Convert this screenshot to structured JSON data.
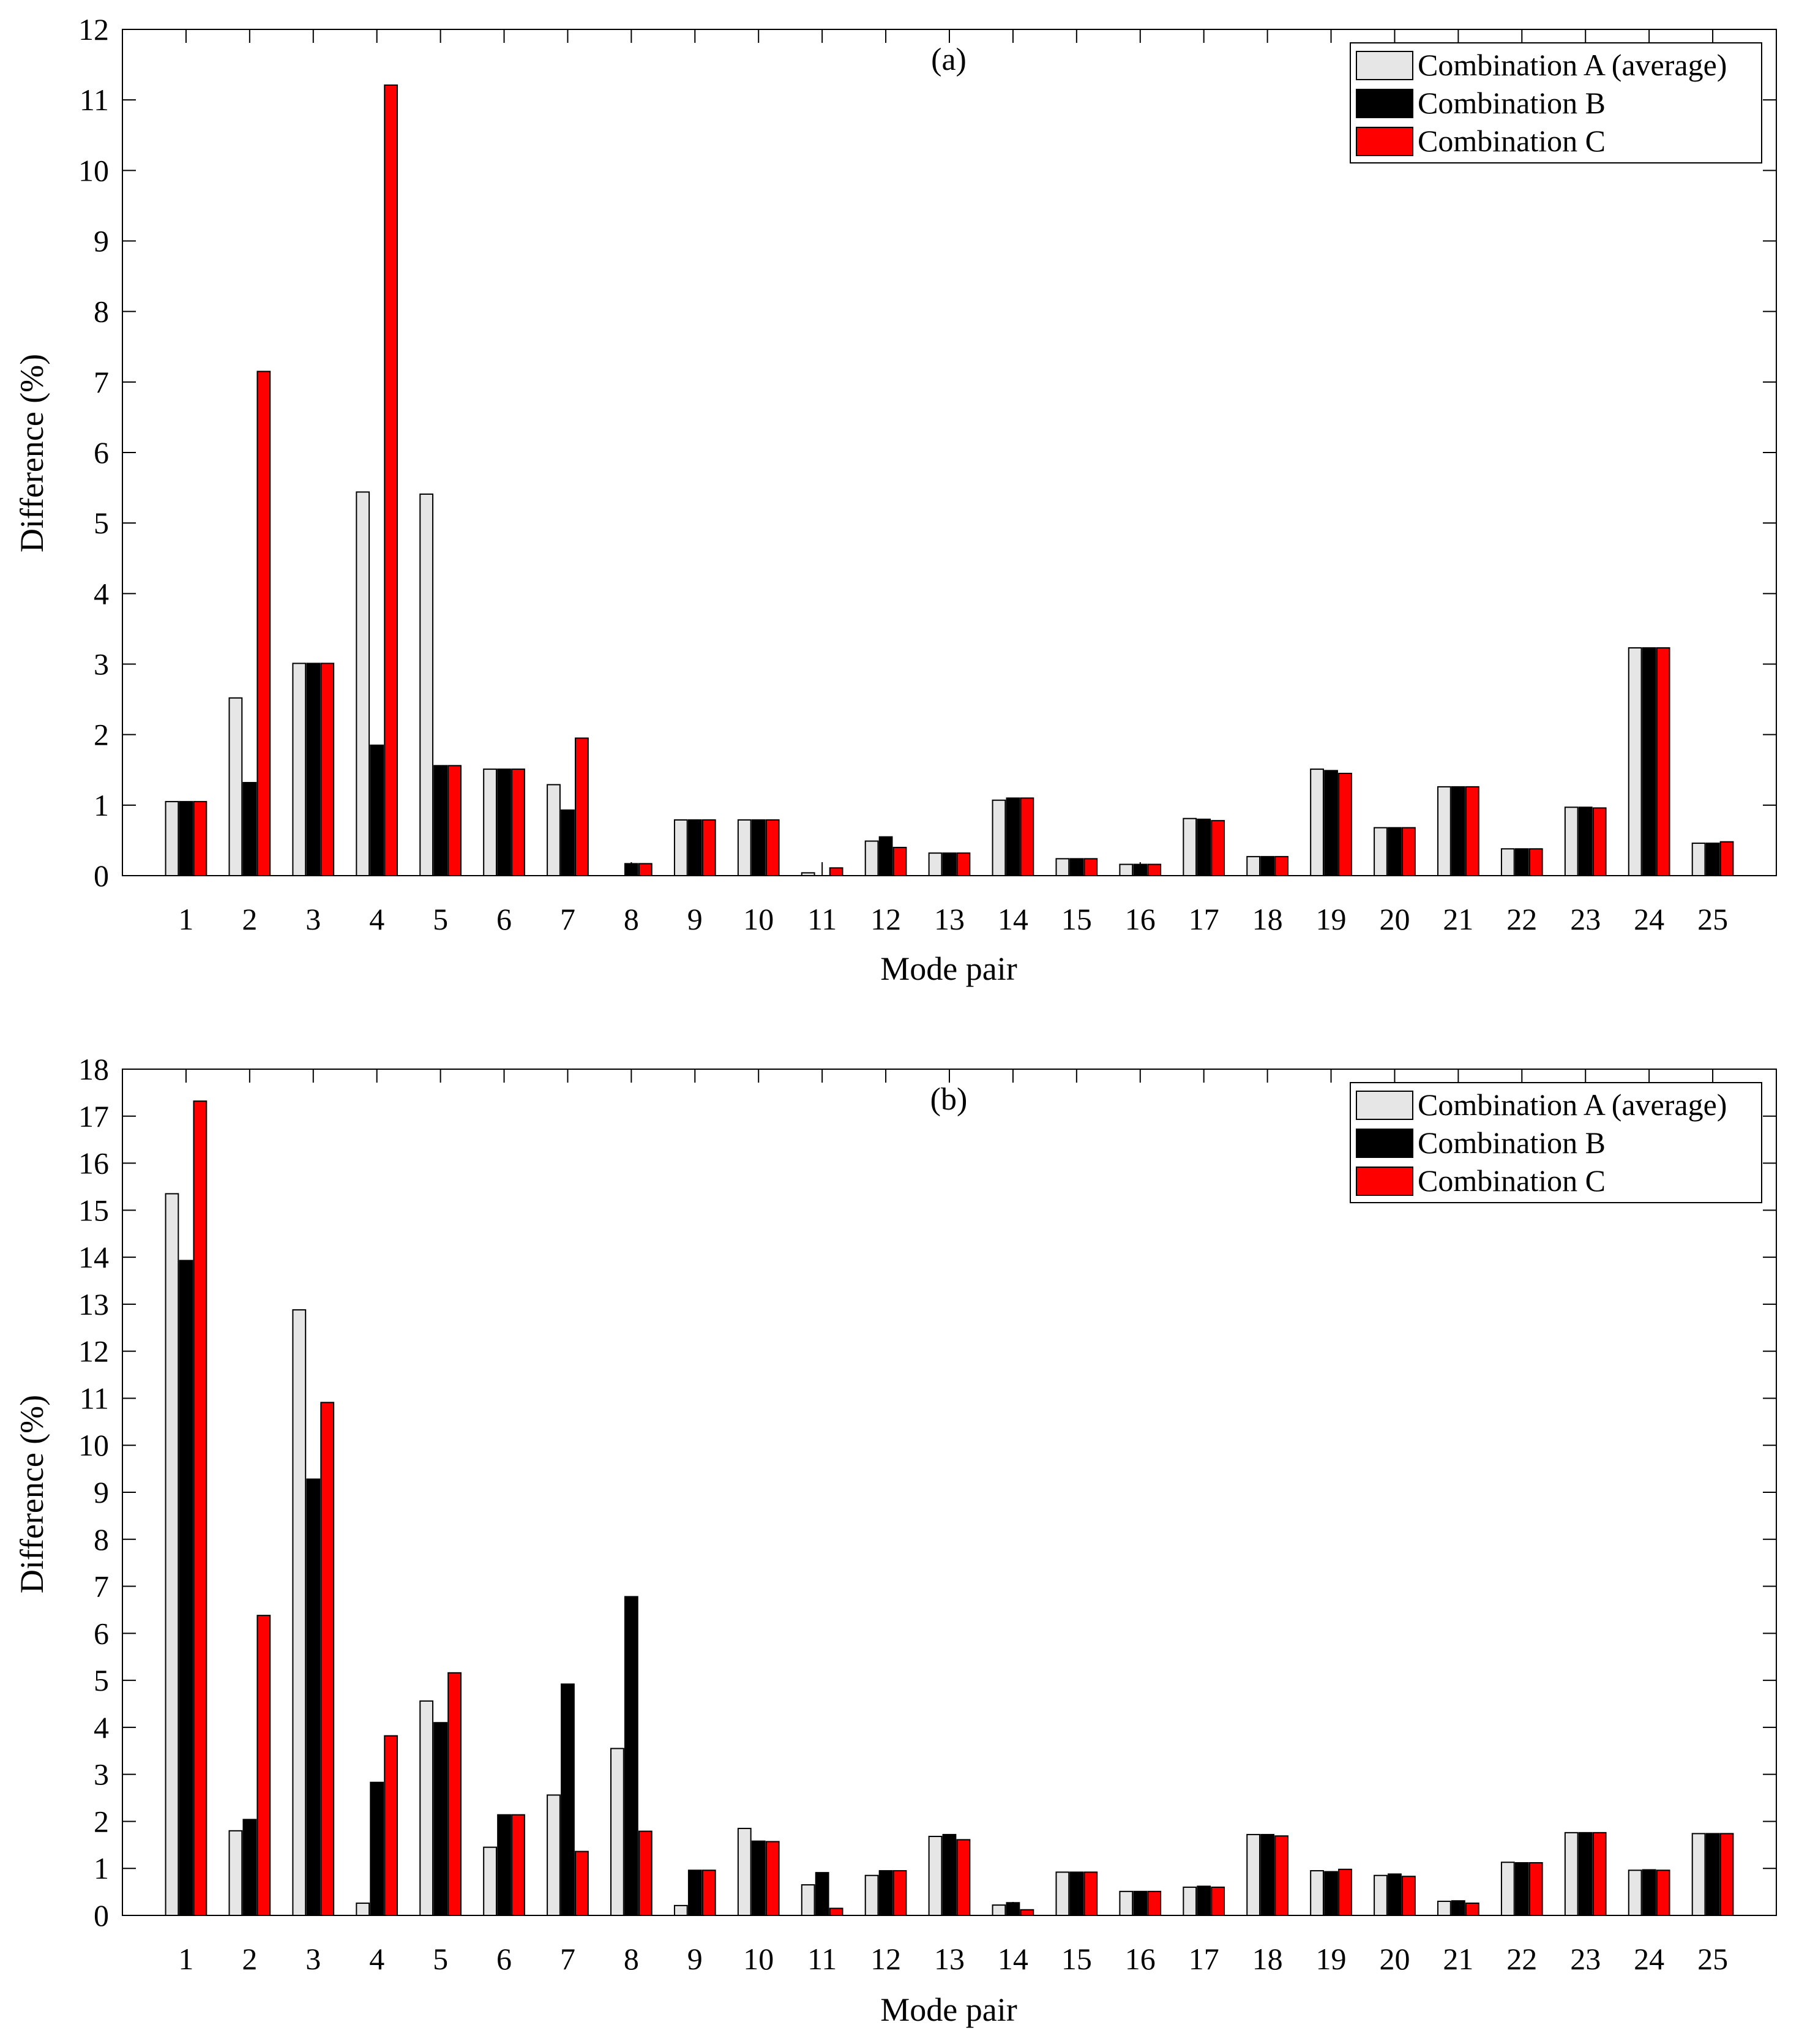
{
  "colors": {
    "combination_a": "#e6e6e6",
    "combination_b": "#000000",
    "combination_c": "#ff0000",
    "axis": "#000000",
    "background": "#ffffff"
  },
  "chart_data": [
    {
      "type": "bar",
      "title": "(a)",
      "xlabel": "Mode pair",
      "ylabel": "Difference (%)",
      "ylim": [
        0,
        12
      ],
      "yticks": [
        0,
        1,
        2,
        3,
        4,
        5,
        6,
        7,
        8,
        9,
        10,
        11,
        12
      ],
      "legend_position": "top-right",
      "categories": [
        "1",
        "2",
        "3",
        "4",
        "5",
        "6",
        "7",
        "8",
        "9",
        "10",
        "11",
        "12",
        "13",
        "14",
        "15",
        "16",
        "17",
        "18",
        "19",
        "20",
        "21",
        "22",
        "23",
        "24",
        "25"
      ],
      "series": [
        {
          "name": "Combination A (average)",
          "key": "combination_a",
          "values": [
            1.05,
            2.52,
            3.01,
            5.44,
            5.41,
            1.51,
            1.29,
            0.0,
            0.79,
            0.79,
            0.04,
            0.49,
            0.32,
            1.07,
            0.24,
            0.16,
            0.81,
            0.27,
            1.51,
            0.68,
            1.26,
            0.38,
            0.97,
            3.23,
            0.46
          ]
        },
        {
          "name": "Combination B",
          "key": "combination_b",
          "values": [
            1.05,
            1.32,
            3.01,
            1.85,
            1.56,
            1.51,
            0.93,
            0.17,
            0.79,
            0.79,
            0.0,
            0.55,
            0.32,
            1.1,
            0.24,
            0.16,
            0.8,
            0.27,
            1.49,
            0.68,
            1.26,
            0.38,
            0.97,
            3.23,
            0.46
          ]
        },
        {
          "name": "Combination C",
          "key": "combination_c",
          "values": [
            1.05,
            7.15,
            3.01,
            11.21,
            1.56,
            1.51,
            1.95,
            0.17,
            0.79,
            0.79,
            0.11,
            0.4,
            0.32,
            1.1,
            0.24,
            0.16,
            0.78,
            0.27,
            1.45,
            0.68,
            1.26,
            0.38,
            0.96,
            3.23,
            0.48
          ]
        }
      ]
    },
    {
      "type": "bar",
      "title": "(b)",
      "xlabel": "Mode pair",
      "ylabel": "Difference (%)",
      "ylim": [
        0,
        18
      ],
      "yticks": [
        0,
        1,
        2,
        3,
        4,
        5,
        6,
        7,
        8,
        9,
        10,
        11,
        12,
        13,
        14,
        15,
        16,
        17,
        18
      ],
      "legend_position": "top-right",
      "categories": [
        "1",
        "2",
        "3",
        "4",
        "5",
        "6",
        "7",
        "8",
        "9",
        "10",
        "11",
        "12",
        "13",
        "14",
        "15",
        "16",
        "17",
        "18",
        "19",
        "20",
        "21",
        "22",
        "23",
        "24",
        "25"
      ],
      "series": [
        {
          "name": "Combination A (average)",
          "key": "combination_a",
          "values": [
            15.35,
            1.8,
            12.88,
            0.26,
            4.56,
            1.45,
            2.56,
            3.55,
            0.21,
            1.85,
            0.65,
            0.85,
            1.68,
            0.22,
            0.92,
            0.51,
            0.6,
            1.72,
            0.95,
            0.85,
            0.3,
            1.13,
            1.76,
            0.96,
            1.74
          ]
        },
        {
          "name": "Combination B",
          "key": "combination_b",
          "values": [
            13.93,
            2.04,
            9.28,
            2.83,
            4.1,
            2.14,
            4.92,
            6.78,
            0.96,
            1.58,
            0.91,
            0.95,
            1.72,
            0.27,
            0.92,
            0.51,
            0.62,
            1.72,
            0.93,
            0.88,
            0.31,
            1.12,
            1.76,
            0.97,
            1.74
          ]
        },
        {
          "name": "Combination C",
          "key": "combination_c",
          "values": [
            17.32,
            6.38,
            10.91,
            3.82,
            5.16,
            2.14,
            1.36,
            1.79,
            0.96,
            1.57,
            0.15,
            0.95,
            1.61,
            0.12,
            0.92,
            0.51,
            0.6,
            1.69,
            0.98,
            0.83,
            0.26,
            1.12,
            1.76,
            0.96,
            1.74
          ]
        }
      ]
    }
  ]
}
